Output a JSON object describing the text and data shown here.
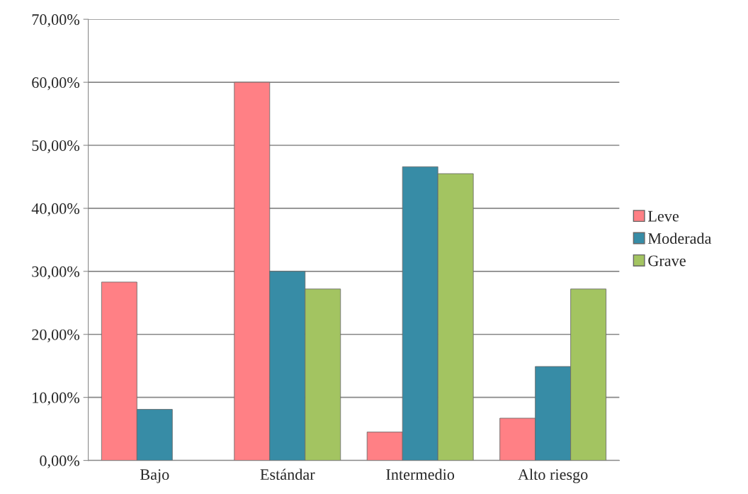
{
  "chart_data": {
    "type": "bar",
    "categories": [
      "Bajo",
      "Estándar",
      "Intermedio",
      "Alto riesgo"
    ],
    "series": [
      {
        "name": "Leve",
        "color": "#ff8085",
        "values": [
          28.3,
          60.0,
          4.5,
          6.7
        ]
      },
      {
        "name": "Moderada",
        "color": "#378ca6",
        "values": [
          8.1,
          30.0,
          46.6,
          14.9
        ]
      },
      {
        "name": "Grave",
        "color": "#a3c461",
        "values": [
          null,
          27.2,
          45.5,
          27.2
        ]
      }
    ],
    "ylim": [
      0,
      70
    ],
    "yticks": [
      {
        "value": 0,
        "label": "0,00%"
      },
      {
        "value": 10,
        "label": "10,00%"
      },
      {
        "value": 20,
        "label": "20,00%"
      },
      {
        "value": 30,
        "label": "30,00%"
      },
      {
        "value": 40,
        "label": "40,00%"
      },
      {
        "value": 50,
        "label": "50,00%"
      },
      {
        "value": 60,
        "label": "60,00%"
      },
      {
        "value": 70,
        "label": "70,00%"
      }
    ],
    "grid": "y",
    "legend": "right"
  }
}
